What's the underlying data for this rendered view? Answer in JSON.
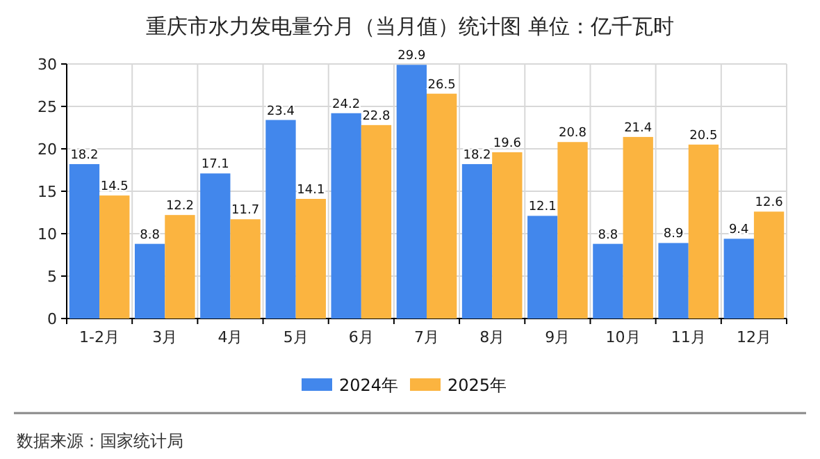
{
  "chart_data": {
    "type": "bar",
    "title": "重庆市水力发电量分月（当月值）统计图 单位：亿千瓦时",
    "categories": [
      "1-2月",
      "3月",
      "4月",
      "5月",
      "6月",
      "7月",
      "8月",
      "9月",
      "10月",
      "11月",
      "12月"
    ],
    "series": [
      {
        "name": "2024年",
        "color": "#4287ec",
        "values": [
          18.2,
          8.8,
          17.1,
          23.4,
          24.2,
          29.9,
          18.2,
          12.1,
          8.8,
          8.9,
          9.4
        ]
      },
      {
        "name": "2025年",
        "color": "#fbb440",
        "values": [
          14.5,
          12.2,
          11.7,
          14.1,
          22.8,
          26.5,
          19.6,
          20.8,
          21.4,
          20.5,
          12.6
        ]
      }
    ],
    "ylim": [
      0,
      30
    ],
    "yticks": [
      0,
      5,
      10,
      15,
      20,
      25,
      30
    ],
    "grid": true,
    "legend": "bottom",
    "data_labels": true,
    "annotations": [
      "数据来源：国家统计局"
    ]
  }
}
